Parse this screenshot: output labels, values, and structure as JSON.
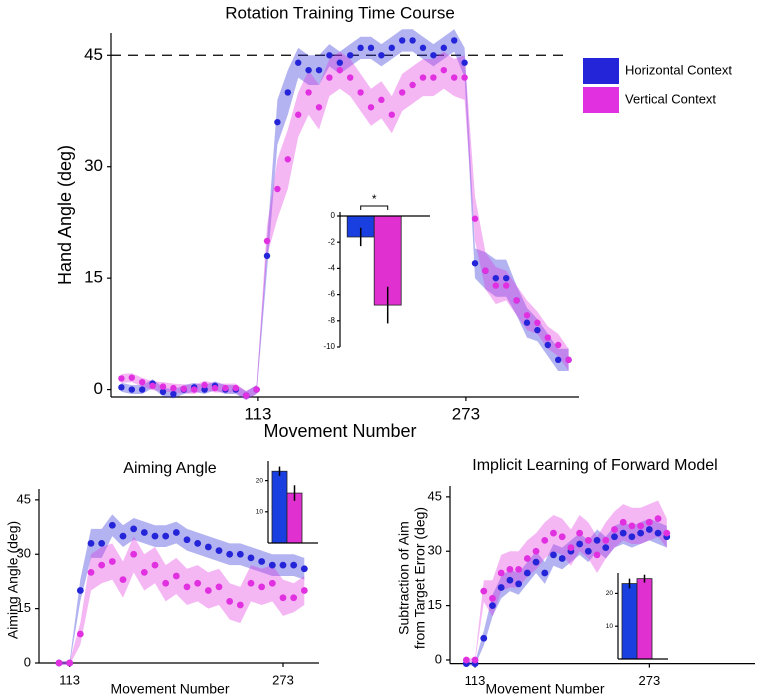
{
  "chart_data": [
    {
      "type": "scatter",
      "title": "Rotation Training Time Course",
      "xlabel": "Movement Number",
      "ylabel": [
        "Hand Angle (deg)"
      ],
      "x": [
        8,
        16,
        24,
        32,
        40,
        48,
        56,
        64,
        72,
        80,
        88,
        96,
        104,
        112,
        120,
        128,
        136,
        144,
        152,
        160,
        168,
        176,
        184,
        192,
        200,
        208,
        216,
        224,
        232,
        240,
        248,
        256,
        264,
        272,
        280,
        288,
        296,
        304,
        312,
        320,
        328,
        336,
        344,
        352
      ],
      "xlim": [
        0,
        360
      ],
      "xticks": [
        113,
        273
      ],
      "ylim": [
        -1,
        48
      ],
      "yticks": [
        0,
        15,
        30,
        45
      ],
      "hline": 45,
      "legend": "upper right",
      "series": [
        {
          "name": "Horizontal Context",
          "color": "#2424d8",
          "values": [
            0.3,
            0,
            0,
            0.8,
            -0.3,
            -0.6,
            0,
            0.3,
            0,
            0.5,
            0,
            0,
            -0.8,
            0,
            18,
            36,
            40,
            44,
            43,
            43,
            45,
            44,
            45,
            46,
            46,
            45,
            46,
            47,
            47,
            46,
            45,
            46,
            47,
            44,
            17,
            16,
            15,
            15,
            12,
            9,
            8,
            6,
            4,
            4
          ],
          "errors": [
            0.6,
            0.6,
            0.6,
            0.6,
            0.6,
            0.6,
            0.6,
            0.6,
            0.6,
            0.6,
            0.6,
            0.6,
            0.6,
            0.6,
            2,
            3,
            3,
            2,
            2,
            2,
            1.5,
            1.5,
            1.5,
            1.5,
            1.5,
            1.5,
            1.5,
            1.5,
            1.5,
            1.5,
            1.5,
            1.5,
            1.5,
            2,
            2,
            2.5,
            2.5,
            2.5,
            2,
            2,
            1.5,
            1.5,
            1.5,
            1.5
          ]
        },
        {
          "name": "Vertical Context",
          "color": "#e030e0",
          "values": [
            1.5,
            1.6,
            1,
            0.5,
            0.4,
            0.2,
            0.1,
            0,
            0.6,
            0.2,
            0.2,
            0.2,
            -0.8,
            0,
            20,
            27,
            31,
            37,
            40,
            38,
            42,
            43,
            42,
            40,
            38,
            39,
            37,
            40,
            41,
            42,
            42,
            43,
            42,
            42,
            23,
            16,
            14,
            14,
            12,
            10,
            9,
            7,
            6,
            4
          ],
          "errors": [
            0.6,
            0.6,
            0.6,
            0.6,
            0.6,
            0.6,
            0.6,
            0.6,
            0.6,
            0.6,
            0.6,
            0.6,
            0.6,
            0.6,
            2,
            4,
            4,
            3,
            3,
            3,
            2.5,
            2.5,
            2.5,
            2.5,
            2.5,
            2.5,
            2.5,
            2.5,
            2.5,
            2.5,
            2.5,
            2.5,
            2.5,
            3,
            3,
            2.5,
            2.5,
            2,
            2,
            2,
            1.5,
            1.5,
            1.5,
            1.5
          ]
        }
      ],
      "inset": {
        "type": "bar",
        "values": [
          -1.6,
          -6.8
        ],
        "errors": [
          0.7,
          1.4
        ],
        "colors": [
          "#1a3fe0",
          "#e030d0"
        ],
        "ylim": [
          -10,
          0
        ],
        "yticks": [
          0,
          -2,
          -4,
          -6,
          -8,
          -10
        ],
        "annotation": "*"
      }
    },
    {
      "type": "scatter",
      "title": "Aiming Angle",
      "xlabel": "Movement Number",
      "ylabel": [
        "Aiming Angle (deg)"
      ],
      "x": [
        105,
        113,
        121,
        129,
        137,
        145,
        153,
        161,
        169,
        177,
        185,
        193,
        201,
        209,
        217,
        225,
        233,
        241,
        249,
        257,
        265,
        273,
        281,
        289
      ],
      "xlim": [
        90,
        300
      ],
      "xticks": [
        113,
        273
      ],
      "ylim": [
        0,
        48
      ],
      "yticks": [
        0,
        15,
        30,
        45
      ],
      "series": [
        {
          "name": "Horizontal Context",
          "color": "#2424d8",
          "values": [
            0,
            0,
            20,
            33,
            33,
            38,
            35,
            37,
            36,
            35,
            35,
            36,
            34,
            33,
            32,
            31,
            30,
            30,
            29,
            28,
            27,
            27,
            27,
            26
          ],
          "errors": [
            0.5,
            0.5,
            3,
            4,
            4,
            3,
            3,
            3,
            3,
            3,
            3,
            3,
            3,
            3,
            3,
            3,
            3,
            3,
            3,
            3,
            3,
            3,
            3,
            3
          ]
        },
        {
          "name": "Vertical Context",
          "color": "#e030e0",
          "values": [
            0,
            0,
            8,
            25,
            27,
            28,
            23,
            30,
            25,
            27,
            22,
            24,
            21,
            22,
            20,
            21,
            17,
            16,
            22,
            21,
            22,
            18,
            18,
            20
          ],
          "errors": [
            0.5,
            0.5,
            3,
            5,
            5,
            5,
            5,
            5,
            5,
            5,
            5,
            5,
            5,
            5,
            5,
            5,
            5,
            5,
            5,
            5,
            5,
            5,
            4,
            4
          ]
        }
      ],
      "inset": {
        "type": "bar",
        "values": [
          23,
          16
        ],
        "errors": [
          1.5,
          2.5
        ],
        "colors": [
          "#1a3fe0",
          "#e030d0"
        ],
        "ylim": [
          0,
          25
        ],
        "yticks": [
          10,
          20
        ]
      }
    },
    {
      "type": "scatter",
      "title": "Implicit Learning of Forward Model",
      "xlabel": "Movement Number",
      "ylabel": [
        "Subtraction of Aim",
        "from Target Error (deg)"
      ],
      "x": [
        105,
        113,
        121,
        129,
        137,
        145,
        153,
        161,
        169,
        177,
        185,
        193,
        201,
        209,
        217,
        225,
        233,
        241,
        249,
        257,
        265,
        273,
        281,
        289
      ],
      "xlim": [
        90,
        370
      ],
      "xticks": [
        113,
        273
      ],
      "ylim": [
        -1,
        48
      ],
      "yticks": [
        0,
        15,
        30,
        45
      ],
      "series": [
        {
          "name": "Horizontal Context",
          "color": "#2424d8",
          "values": [
            -1,
            -1,
            6,
            15,
            20,
            22,
            21,
            24,
            27,
            24,
            29,
            28,
            30,
            32,
            30,
            33,
            31,
            34,
            35,
            34,
            35,
            36,
            35,
            34
          ],
          "errors": [
            0.5,
            0.5,
            2,
            3,
            3,
            3,
            3,
            3,
            3,
            3,
            3,
            3,
            3,
            3,
            3,
            3,
            3,
            3,
            3,
            3,
            3,
            3,
            3,
            3
          ]
        },
        {
          "name": "Vertical Context",
          "color": "#e030e0",
          "values": [
            0,
            0,
            19,
            17,
            24,
            25,
            25,
            28,
            30,
            33,
            35,
            34,
            31,
            35,
            33,
            29,
            33,
            36,
            38,
            37,
            37,
            38,
            39,
            35
          ],
          "errors": [
            0.5,
            0.5,
            3,
            5,
            5,
            5,
            5,
            5,
            5,
            5,
            5,
            5,
            5,
            5,
            5,
            5,
            5,
            5,
            5,
            5,
            5,
            5,
            5,
            4
          ]
        }
      ],
      "inset": {
        "type": "bar",
        "values": [
          23,
          24.5
        ],
        "errors": [
          1.5,
          1.2
        ],
        "colors": [
          "#1a3fe0",
          "#e030d0"
        ],
        "ylim": [
          0,
          25
        ],
        "yticks": [
          10,
          20
        ]
      }
    }
  ]
}
